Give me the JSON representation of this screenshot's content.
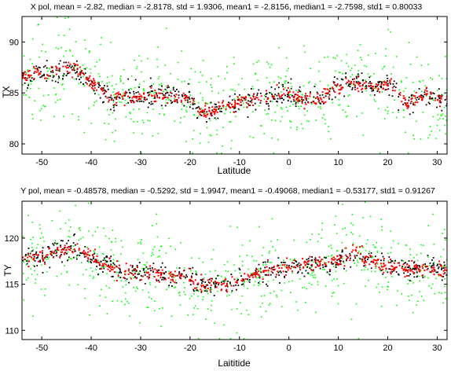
{
  "chart_data": [
    {
      "type": "scatter",
      "title": "X pol, mean = -2.82, median = -2.8178, std = 1.9306, mean1 = -2.8156, median1 = -2.7598, std1 = 0.80033",
      "xlabel": "Latitude",
      "ylabel": "TX",
      "xlim": [
        -54,
        32
      ],
      "ylim": [
        79,
        92.5
      ],
      "xticks": [
        -50,
        -40,
        -30,
        -20,
        -10,
        0,
        10,
        20,
        30
      ],
      "yticks": [
        80,
        85,
        90
      ],
      "grid": false,
      "series_colors": {
        "scatter": "#00ff00",
        "black": "#000000",
        "red": "#ff0000"
      },
      "trend": {
        "x": [
          -54,
          -51,
          -48,
          -45,
          -43,
          -40,
          -38,
          -36,
          -33,
          -30,
          -27,
          -25,
          -22,
          -20,
          -18,
          -16,
          -13,
          -10,
          -7,
          -5,
          -3,
          0,
          2,
          4,
          6,
          8,
          10,
          12,
          14,
          16,
          18,
          20,
          22,
          24,
          26,
          28,
          30,
          32
        ],
        "y": [
          86.5,
          87.0,
          86.9,
          87.6,
          87.4,
          86.0,
          85.4,
          84.3,
          84.6,
          84.7,
          84.9,
          84.8,
          84.6,
          84.4,
          83.0,
          83.2,
          83.6,
          84.0,
          84.4,
          84.6,
          84.7,
          85.0,
          84.3,
          84.4,
          84.5,
          84.8,
          85.6,
          86.0,
          86.0,
          85.8,
          85.7,
          85.9,
          85.1,
          83.9,
          84.6,
          84.9,
          84.2,
          84.5
        ]
      },
      "scatter_spread": 2.2,
      "black_spread": 0.55,
      "red_spread": 0.35
    },
    {
      "type": "scatter",
      "title": "Y pol, mean = -0.48578, median = -0.5292, std = 1.9947, mean1 = -0.49068, median1 = -0.53177, std1 = 0.91267",
      "xlabel": "Laititide",
      "ylabel": "TY",
      "xlim": [
        -54,
        32
      ],
      "ylim": [
        109,
        124
      ],
      "xticks": [
        -50,
        -40,
        -30,
        -20,
        -10,
        0,
        10,
        20,
        30
      ],
      "yticks": [
        110,
        115,
        120
      ],
      "grid": false,
      "series_colors": {
        "scatter": "#00ff00",
        "black": "#000000",
        "red": "#ff0000"
      },
      "trend": {
        "x": [
          -54,
          -51,
          -48,
          -45,
          -43,
          -40,
          -38,
          -36,
          -33,
          -30,
          -27,
          -25,
          -22,
          -20,
          -18,
          -16,
          -13,
          -10,
          -7,
          -5,
          -3,
          0,
          2,
          4,
          6,
          8,
          10,
          12,
          14,
          16,
          18,
          20,
          22,
          24,
          26,
          28,
          30,
          32
        ],
        "y": [
          118.0,
          117.8,
          118.3,
          118.7,
          118.9,
          118.0,
          117.3,
          117.0,
          116.3,
          116.2,
          116.1,
          116.0,
          115.8,
          115.5,
          114.9,
          114.9,
          114.8,
          115.5,
          116.1,
          116.5,
          116.6,
          116.8,
          117.0,
          117.2,
          117.3,
          117.4,
          117.5,
          118.1,
          118.3,
          117.8,
          117.4,
          117.0,
          116.8,
          116.6,
          116.5,
          116.8,
          116.7,
          116.5
        ]
      },
      "scatter_spread": 2.4,
      "black_spread": 0.6,
      "red_spread": 0.4
    }
  ]
}
